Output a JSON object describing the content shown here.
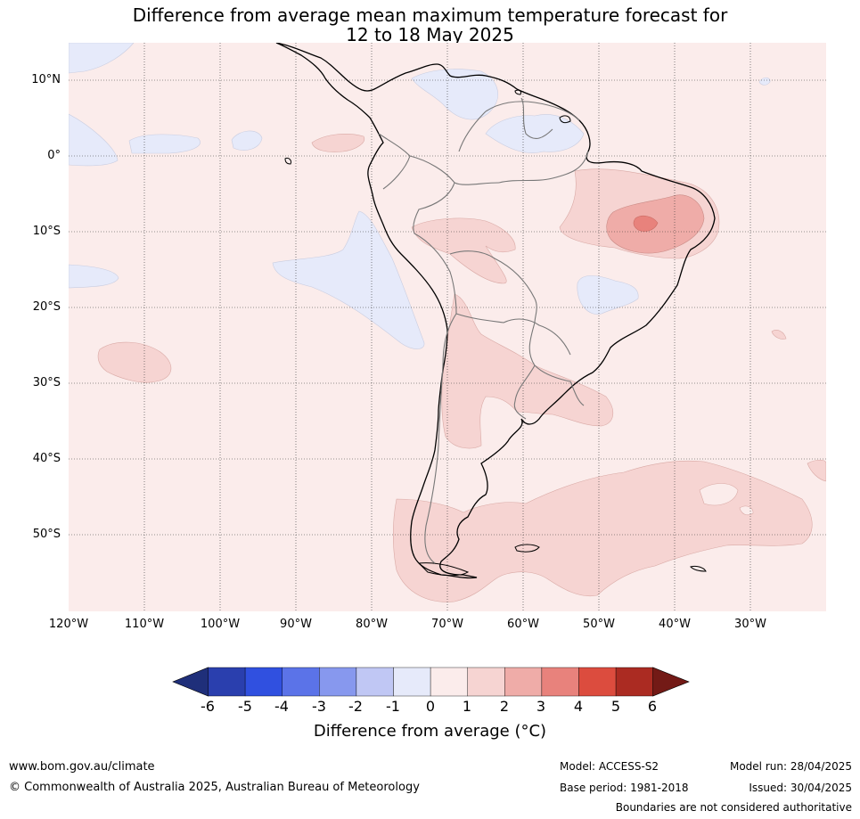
{
  "title": {
    "line1": "Difference from average mean maximum temperature forecast for",
    "line2": "12 to 18 May 2025"
  },
  "map": {
    "region": "South America",
    "lat_labels": [
      "10°N",
      "0°",
      "10°S",
      "20°S",
      "30°S",
      "40°S",
      "50°S"
    ],
    "lon_labels": [
      "120°W",
      "110°W",
      "100°W",
      "90°W",
      "80°W",
      "70°W",
      "60°W",
      "50°W",
      "40°W",
      "30°W"
    ],
    "background_category": "0 to 1",
    "background_color": "#fbeceb",
    "anomaly_regions": [
      {
        "area": "eastern Brazil (Bahia/Piauí)",
        "range": "1 to 2"
      },
      {
        "area": "eastern Brazil core",
        "range": "2 to 3"
      },
      {
        "area": "eastern Brazil peak",
        "range": "3 to 4"
      },
      {
        "area": "Bolivia/western Brazil",
        "range": "1 to 2"
      },
      {
        "area": "northern Argentina & Paraguay",
        "range": "1 to 2"
      },
      {
        "area": "Patagonia & South Atlantic",
        "range": "1 to 2"
      },
      {
        "area": "Pacific off Peru",
        "range": "-1 to 0"
      },
      {
        "area": "Venezuela / Guianas",
        "range": "-1 to 0"
      },
      {
        "area": "south-eastern Brazil",
        "range": "-1 to 0"
      }
    ]
  },
  "colorbar": {
    "ticks": [
      "-6",
      "-5",
      "-4",
      "-3",
      "-2",
      "-1",
      "0",
      "1",
      "2",
      "3",
      "4",
      "5",
      "6"
    ],
    "low_extend_color": "#1f2f7a",
    "high_extend_color": "#731a16",
    "colors": [
      "#2a3fae",
      "#3050e0",
      "#5b73e8",
      "#8798ee",
      "#c0c7f4",
      "#e6eafa",
      "#fbeceb",
      "#f6d4d2",
      "#efaca8",
      "#e8827c",
      "#dc4c3e",
      "#ab2b22"
    ],
    "label": "Difference from average (°C)"
  },
  "footer": {
    "website": "www.bom.gov.au/climate",
    "copyright": "© Commonwealth of Australia 2025, Australian Bureau of Meteorology",
    "model": "Model: ACCESS-S2",
    "base_period": "Base period: 1981-2018",
    "model_run": "Model run: 28/04/2025",
    "issued": "Issued: 30/04/2025",
    "disclaimer": "Boundaries are not considered authoritative"
  }
}
